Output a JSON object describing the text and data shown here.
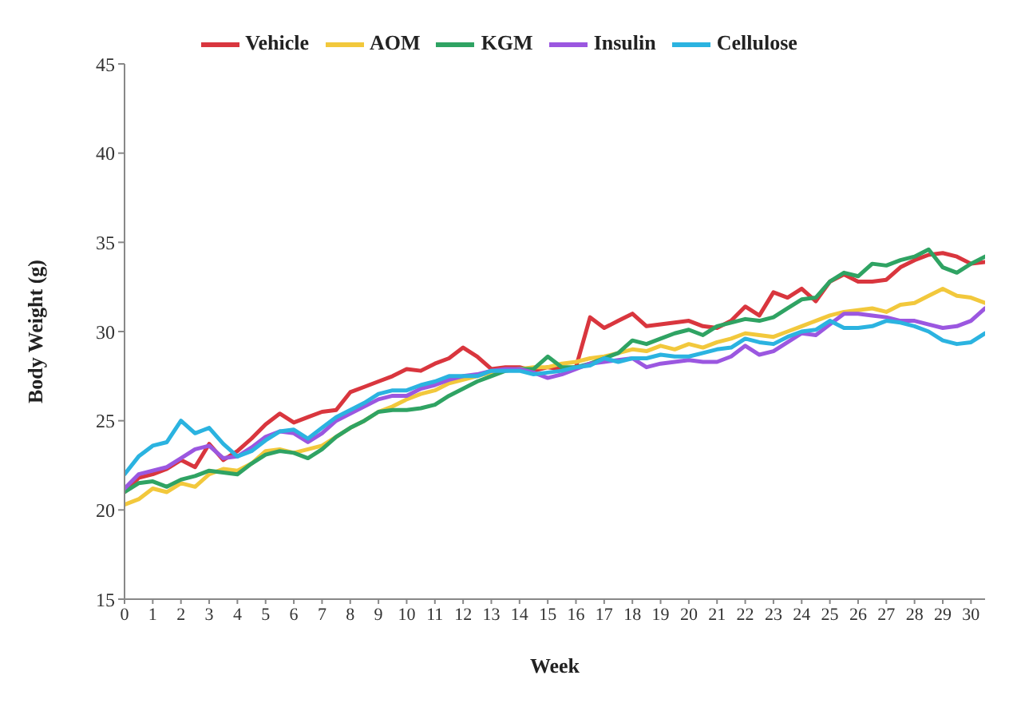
{
  "chart_data": {
    "type": "line",
    "xlabel": "Week",
    "ylabel": "Body Weight (g)",
    "x": [
      0,
      0.5,
      1,
      1.5,
      2,
      2.5,
      3,
      3.5,
      4,
      4.5,
      5,
      5.5,
      6,
      6.5,
      7,
      7.5,
      8,
      8.5,
      9,
      9.5,
      10,
      10.5,
      11,
      11.5,
      12,
      12.5,
      13,
      13.5,
      14,
      14.5,
      15,
      15.5,
      16,
      16.5,
      17,
      17.5,
      18,
      18.5,
      19,
      19.5,
      20,
      20.5,
      21,
      21.5,
      22,
      22.5,
      23,
      23.5,
      24,
      24.5,
      25,
      25.5,
      26,
      26.5,
      27,
      27.5,
      28,
      28.5,
      29,
      29.5,
      30,
      30.5
    ],
    "series": [
      {
        "name": "Vehicle",
        "color": "#d9363e",
        "values": [
          21.0,
          21.8,
          22.0,
          22.3,
          22.8,
          22.4,
          23.7,
          22.8,
          23.3,
          24.0,
          24.8,
          25.4,
          24.9,
          25.2,
          25.5,
          25.6,
          26.6,
          26.9,
          27.2,
          27.5,
          27.9,
          27.8,
          28.2,
          28.5,
          29.1,
          28.6,
          27.9,
          28.0,
          28.0,
          27.8,
          28.0,
          27.9,
          28.0,
          30.8,
          30.2,
          30.6,
          31.0,
          30.3,
          30.4,
          30.5,
          30.6,
          30.3,
          30.2,
          30.6,
          31.4,
          30.9,
          32.2,
          31.9,
          32.4,
          31.7,
          32.8,
          33.2,
          32.8,
          32.8,
          32.9,
          33.6,
          34.0,
          34.3,
          34.4,
          34.2,
          33.8,
          33.9
        ]
      },
      {
        "name": "AOM",
        "color": "#f2c83c",
        "values": [
          20.3,
          20.6,
          21.2,
          21.0,
          21.5,
          21.3,
          22.0,
          22.3,
          22.2,
          22.6,
          23.3,
          23.4,
          23.2,
          23.4,
          23.6,
          24.1,
          24.6,
          25.0,
          25.5,
          25.8,
          26.2,
          26.5,
          26.7,
          27.1,
          27.3,
          27.5,
          27.7,
          27.8,
          27.9,
          28.0,
          28.0,
          28.2,
          28.3,
          28.5,
          28.6,
          28.8,
          29.0,
          28.9,
          29.2,
          29.0,
          29.3,
          29.1,
          29.4,
          29.6,
          29.9,
          29.8,
          29.7,
          30.0,
          30.3,
          30.6,
          30.9,
          31.1,
          31.2,
          31.3,
          31.1,
          31.5,
          31.6,
          32.0,
          32.4,
          32.0,
          31.9,
          31.6
        ]
      },
      {
        "name": "KGM",
        "color": "#2fa363",
        "values": [
          21.0,
          21.5,
          21.6,
          21.3,
          21.7,
          21.9,
          22.2,
          22.1,
          22.0,
          22.6,
          23.1,
          23.3,
          23.2,
          22.9,
          23.4,
          24.1,
          24.6,
          25.0,
          25.5,
          25.6,
          25.6,
          25.7,
          25.9,
          26.4,
          26.8,
          27.2,
          27.5,
          27.8,
          27.9,
          27.9,
          28.6,
          28.0,
          28.0,
          28.2,
          28.5,
          28.8,
          29.5,
          29.3,
          29.6,
          29.9,
          30.1,
          29.8,
          30.3,
          30.5,
          30.7,
          30.6,
          30.8,
          31.3,
          31.8,
          31.9,
          32.8,
          33.3,
          33.1,
          33.8,
          33.7,
          34.0,
          34.2,
          34.6,
          33.6,
          33.3,
          33.8,
          34.2
        ]
      },
      {
        "name": "Insulin",
        "color": "#9b57e0",
        "values": [
          21.2,
          22.0,
          22.2,
          22.4,
          22.9,
          23.4,
          23.6,
          22.9,
          23.0,
          23.5,
          24.1,
          24.4,
          24.3,
          23.8,
          24.3,
          25.0,
          25.4,
          25.8,
          26.2,
          26.4,
          26.4,
          26.8,
          27.0,
          27.3,
          27.5,
          27.6,
          27.8,
          27.9,
          27.9,
          27.7,
          27.4,
          27.6,
          27.9,
          28.2,
          28.3,
          28.4,
          28.5,
          28.0,
          28.2,
          28.3,
          28.4,
          28.3,
          28.3,
          28.6,
          29.2,
          28.7,
          28.9,
          29.4,
          29.9,
          29.8,
          30.4,
          31.0,
          31.0,
          30.9,
          30.8,
          30.6,
          30.6,
          30.4,
          30.2,
          30.3,
          30.6,
          31.3
        ]
      },
      {
        "name": "Cellulose",
        "color": "#2bb3e0",
        "values": [
          22.0,
          23.0,
          23.6,
          23.8,
          25.0,
          24.3,
          24.6,
          23.7,
          23.0,
          23.3,
          23.9,
          24.4,
          24.5,
          24.0,
          24.6,
          25.2,
          25.6,
          26.0,
          26.5,
          26.7,
          26.7,
          27.0,
          27.2,
          27.5,
          27.5,
          27.5,
          27.8,
          27.8,
          27.8,
          27.6,
          27.7,
          27.8,
          28.0,
          28.1,
          28.5,
          28.3,
          28.5,
          28.5,
          28.7,
          28.6,
          28.6,
          28.8,
          29.0,
          29.1,
          29.6,
          29.4,
          29.3,
          29.7,
          30.0,
          30.1,
          30.6,
          30.2,
          30.2,
          30.3,
          30.6,
          30.5,
          30.3,
          30.0,
          29.5,
          29.3,
          29.4,
          29.9
        ]
      }
    ],
    "xlim": [
      0,
      30.5
    ],
    "xticks": [
      0,
      1,
      2,
      3,
      4,
      5,
      6,
      7,
      8,
      9,
      10,
      11,
      12,
      13,
      14,
      15,
      16,
      17,
      18,
      19,
      20,
      21,
      22,
      23,
      24,
      25,
      26,
      27,
      28,
      29,
      30
    ],
    "ylim": [
      15,
      45
    ],
    "yticks": [
      15,
      20,
      25,
      30,
      35,
      40,
      45
    ],
    "legend": "top",
    "marker": "none",
    "line_style": "solid"
  }
}
